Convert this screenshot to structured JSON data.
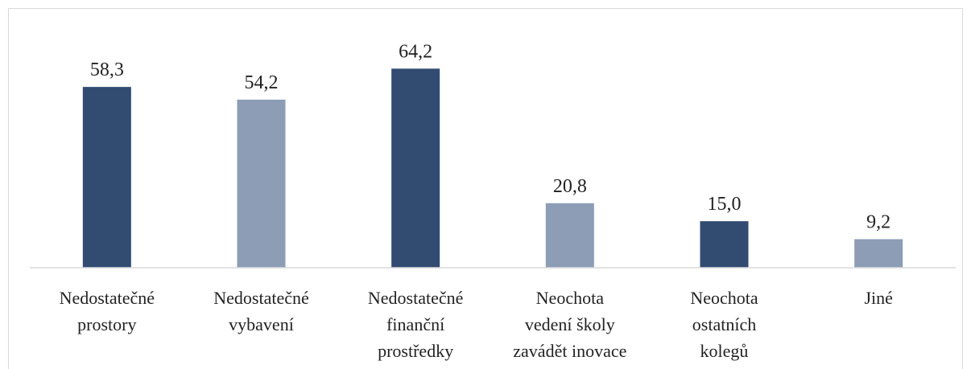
{
  "chart_data": {
    "type": "bar",
    "categories": [
      "Nedostatečné\nprostory",
      "Nedostatečné\nvybavení",
      "Nedostatečné\nfinanční\nprostředky",
      "Neochota\nvedení školy\nzavádět inovace",
      "Neochota\nostatních\nkolegů",
      "Jiné"
    ],
    "values": [
      58.3,
      54.2,
      64.2,
      20.8,
      15.0,
      9.2
    ],
    "value_labels": [
      "58,3",
      "54,2",
      "64,2",
      "20,8",
      "15,0",
      "9,2"
    ],
    "colors": [
      "#324b71",
      "#8c9db5",
      "#324b71",
      "#8c9db5",
      "#324b71",
      "#8c9db5"
    ],
    "ylim": [
      0,
      70
    ]
  }
}
